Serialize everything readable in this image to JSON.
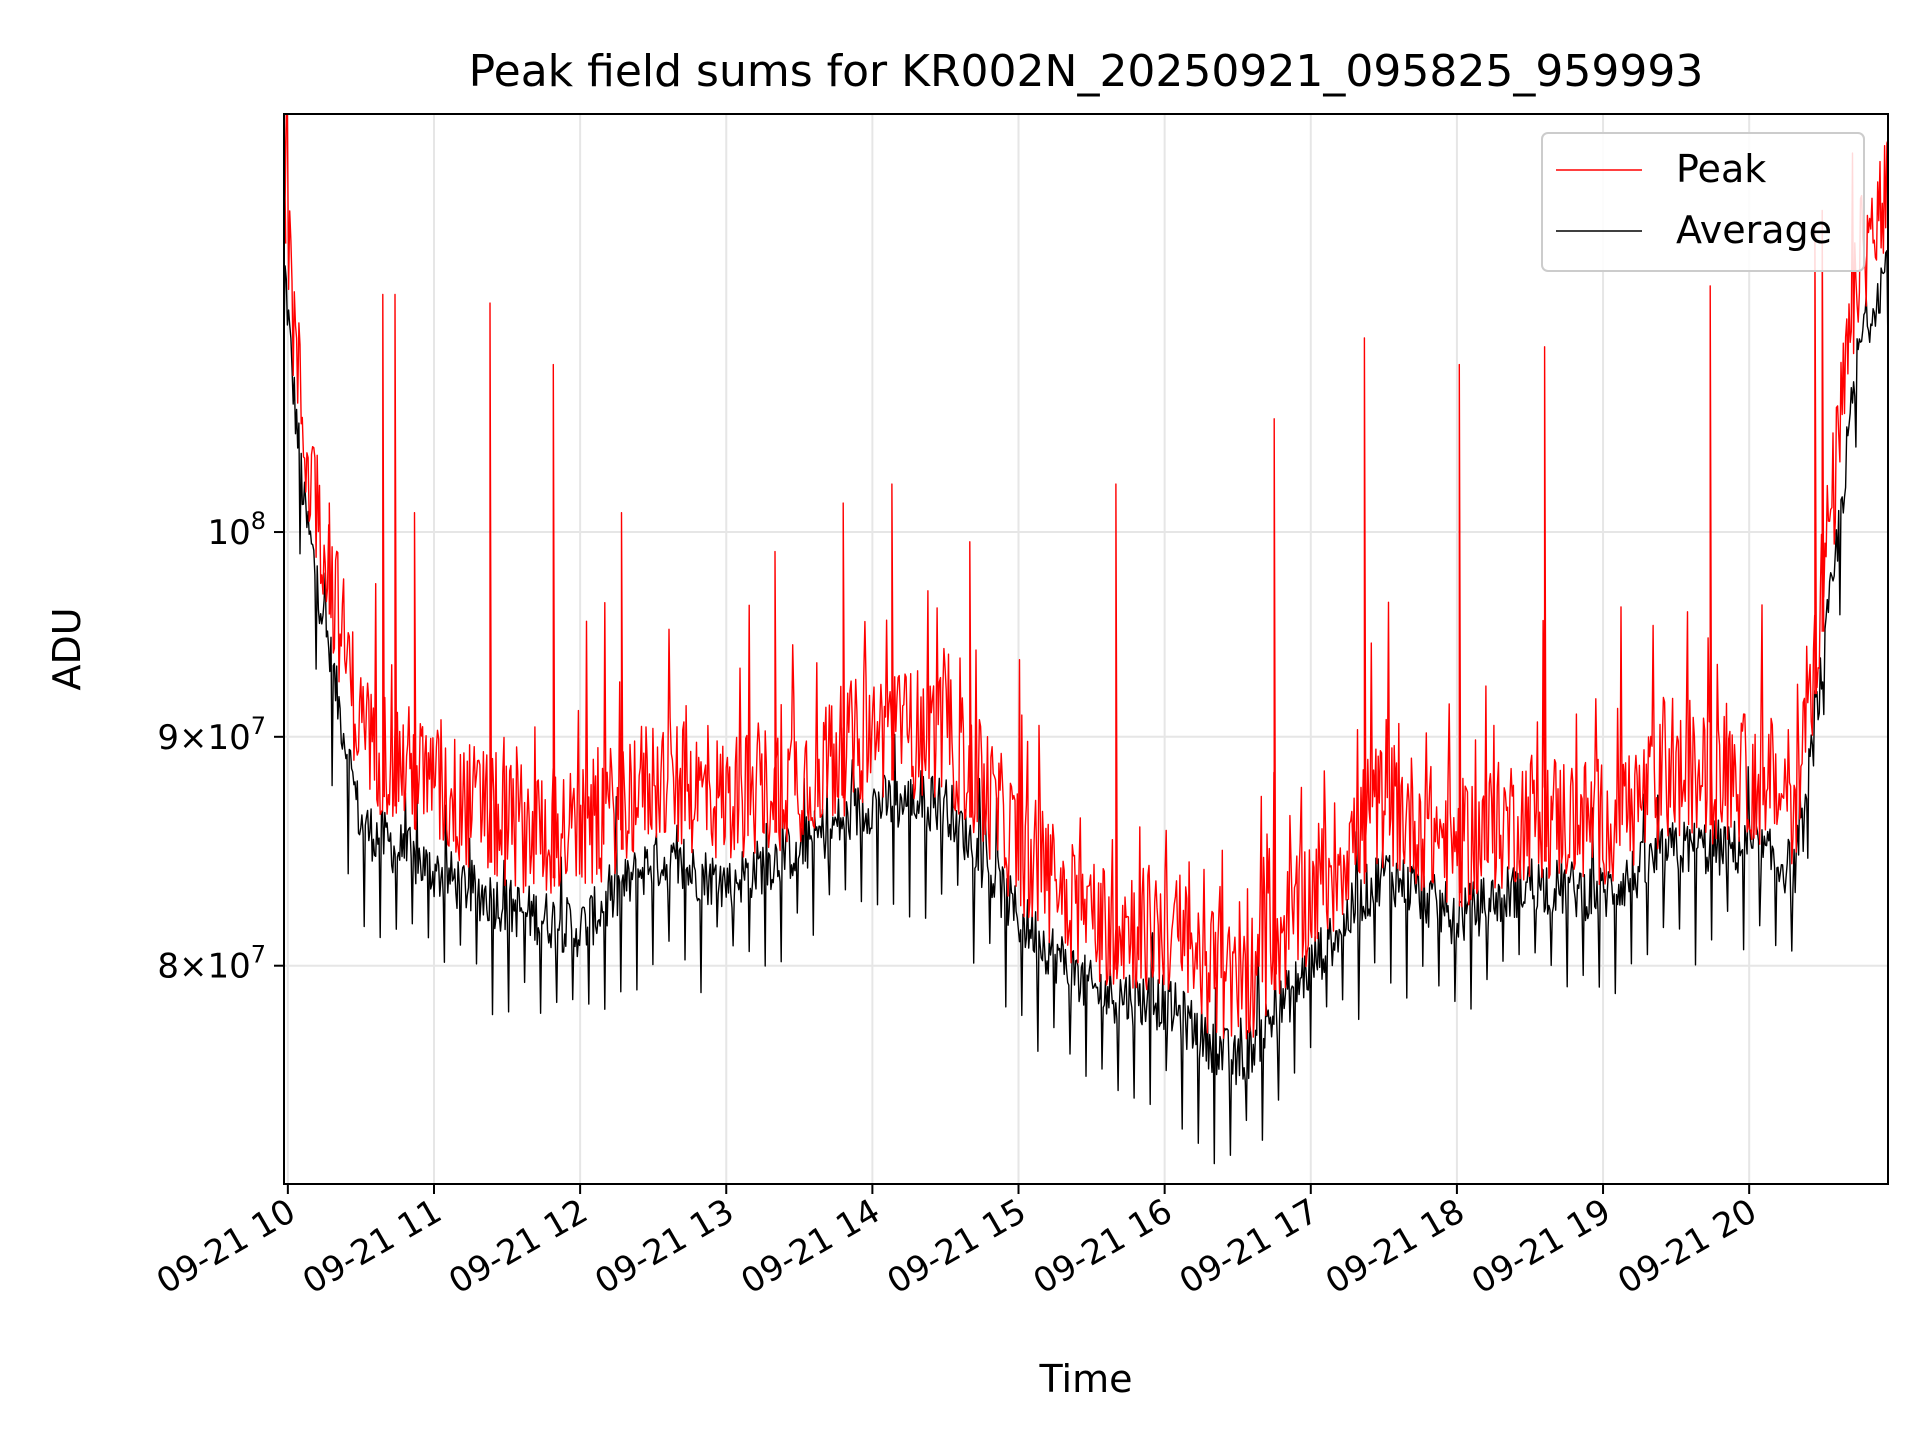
{
  "chart_data": {
    "type": "line",
    "title": "Peak field sums for KR002N_20250921_095825_959993",
    "xlabel": "Time",
    "ylabel": "ADU",
    "x_range": [
      "2025-09-21 09:58:25",
      "2025-09-21 20:57:00"
    ],
    "y_scale": "log",
    "ylim": [
      71500000,
      124000000
    ],
    "grid": true,
    "legend": "top-right",
    "x_ticks": [
      {
        "label": "09-21 10",
        "value": "2025-09-21 10:00"
      },
      {
        "label": "09-21 11",
        "value": "2025-09-21 11:00"
      },
      {
        "label": "09-21 12",
        "value": "2025-09-21 12:00"
      },
      {
        "label": "09-21 13",
        "value": "2025-09-21 13:00"
      },
      {
        "label": "09-21 14",
        "value": "2025-09-21 14:00"
      },
      {
        "label": "09-21 15",
        "value": "2025-09-21 15:00"
      },
      {
        "label": "09-21 16",
        "value": "2025-09-21 16:00"
      },
      {
        "label": "09-21 17",
        "value": "2025-09-21 17:00"
      },
      {
        "label": "09-21 18",
        "value": "2025-09-21 18:00"
      },
      {
        "label": "09-21 19",
        "value": "2025-09-21 19:00"
      },
      {
        "label": "09-21 20",
        "value": "2025-09-21 20:00"
      }
    ],
    "y_ticks": [
      {
        "base": "8",
        "times": "×",
        "pow": "10",
        "exp": "7",
        "value": 80000000
      },
      {
        "base": "9",
        "times": "×",
        "pow": "10",
        "exp": "7",
        "value": 90000000
      },
      {
        "base": "",
        "times": "",
        "pow": "10",
        "exp": "8",
        "value": 100000000
      }
    ],
    "series": [
      {
        "name": "Peak",
        "color": "#ff0000",
        "baseline": [
          [
            "2025-09-21 09:58",
            117000000
          ],
          [
            "2025-09-21 10:02",
            109000000
          ],
          [
            "2025-09-21 10:07",
            102000000
          ],
          [
            "2025-09-21 10:20",
            94000000
          ],
          [
            "2025-09-21 10:30",
            88000000
          ],
          [
            "2025-09-21 11:00",
            85500000
          ],
          [
            "2025-09-21 11:30",
            84000000
          ],
          [
            "2025-09-21 12:00",
            83500000
          ],
          [
            "2025-09-21 12:30",
            86000000
          ],
          [
            "2025-09-21 13:00",
            85000000
          ],
          [
            "2025-09-21 13:30",
            86000000
          ],
          [
            "2025-09-21 14:00",
            88000000
          ],
          [
            "2025-09-21 14:30",
            88000000
          ],
          [
            "2025-09-21 15:00",
            83000000
          ],
          [
            "2025-09-21 15:30",
            80000000
          ],
          [
            "2025-09-21 16:00",
            79500000
          ],
          [
            "2025-09-21 16:30",
            77000000
          ],
          [
            "2025-09-21 17:00",
            81000000
          ],
          [
            "2025-09-21 17:30",
            85000000
          ],
          [
            "2025-09-21 18:00",
            83000000
          ],
          [
            "2025-09-21 18:30",
            84500000
          ],
          [
            "2025-09-21 19:00",
            84000000
          ],
          [
            "2025-09-21 19:30",
            86000000
          ],
          [
            "2025-09-21 20:00",
            86000000
          ],
          [
            "2025-09-21 20:20",
            85000000
          ],
          [
            "2025-09-21 20:35",
            100000000
          ],
          [
            "2025-09-21 20:45",
            112000000
          ],
          [
            "2025-09-21 20:57",
            116000000
          ]
        ],
        "spikes": [
          [
            "2025-09-21 09:58:30",
            124000000
          ],
          [
            "2025-09-21 10:17",
            101500000
          ],
          [
            "2025-09-21 10:39",
            113000000
          ],
          [
            "2025-09-21 10:44",
            113000000
          ],
          [
            "2025-09-21 10:52",
            101000000
          ],
          [
            "2025-09-21 11:23",
            112500000
          ],
          [
            "2025-09-21 11:49",
            109000000
          ],
          [
            "2025-09-21 12:17",
            101000000
          ],
          [
            "2025-09-21 13:20",
            99000000
          ],
          [
            "2025-09-21 13:48",
            101500000
          ],
          [
            "2025-09-21 14:08",
            102500000
          ],
          [
            "2025-09-21 14:40",
            99500000
          ],
          [
            "2025-09-21 15:40",
            102500000
          ],
          [
            "2025-09-21 16:45",
            106000000
          ],
          [
            "2025-09-21 17:22",
            110500000
          ],
          [
            "2025-09-21 18:01",
            109000000
          ],
          [
            "2025-09-21 18:36",
            110000000
          ],
          [
            "2025-09-21 19:44",
            113500000
          ],
          [
            "2025-09-21 20:27",
            117000000
          ],
          [
            "2025-09-21 20:30",
            118000000
          ]
        ]
      },
      {
        "name": "Average",
        "color": "#000000",
        "baseline": [
          [
            "2025-09-21 09:58",
            116000000
          ],
          [
            "2025-09-21 10:02",
            108000000
          ],
          [
            "2025-09-21 10:07",
            101000000
          ],
          [
            "2025-09-21 10:20",
            92000000
          ],
          [
            "2025-09-21 10:30",
            86000000
          ],
          [
            "2025-09-21 11:00",
            84000000
          ],
          [
            "2025-09-21 11:30",
            82500000
          ],
          [
            "2025-09-21 12:00",
            81500000
          ],
          [
            "2025-09-21 12:30",
            84500000
          ],
          [
            "2025-09-21 13:00",
            83500000
          ],
          [
            "2025-09-21 13:30",
            85000000
          ],
          [
            "2025-09-21 14:00",
            87000000
          ],
          [
            "2025-09-21 14:30",
            87000000
          ],
          [
            "2025-09-21 15:00",
            82000000
          ],
          [
            "2025-09-21 15:30",
            79000000
          ],
          [
            "2025-09-21 16:00",
            78500000
          ],
          [
            "2025-09-21 16:30",
            76000000
          ],
          [
            "2025-09-21 17:00",
            80000000
          ],
          [
            "2025-09-21 17:30",
            84000000
          ],
          [
            "2025-09-21 18:00",
            82000000
          ],
          [
            "2025-09-21 18:30",
            83500000
          ],
          [
            "2025-09-21 19:00",
            83000000
          ],
          [
            "2025-09-21 19:30",
            85000000
          ],
          [
            "2025-09-21 20:00",
            85000000
          ],
          [
            "2025-09-21 20:20",
            84000000
          ],
          [
            "2025-09-21 20:35",
            98000000
          ],
          [
            "2025-09-21 20:45",
            110000000
          ],
          [
            "2025-09-21 20:57",
            115000000
          ]
        ]
      }
    ]
  }
}
